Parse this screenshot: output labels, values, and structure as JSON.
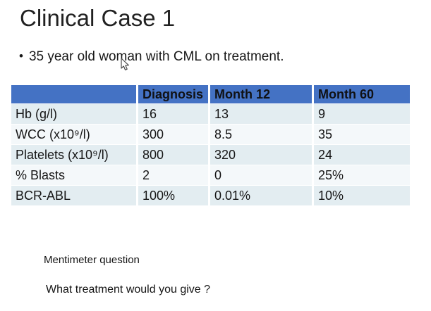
{
  "slide": {
    "title": "Clinical Case 1",
    "bullet_marker": "•",
    "bullet": "35 year old woman with CML on treatment.",
    "footer": {
      "line1": "Mentimeter question",
      "line2": "What treatment would you give ?"
    }
  },
  "table": {
    "header": [
      "",
      "Diagnosis",
      "Month 12",
      "Month 60"
    ],
    "rows": [
      {
        "label": "Hb (g/l)",
        "values": [
          "16",
          "13",
          "9"
        ]
      },
      {
        "label": "WCC (x10⁹/l)",
        "values": [
          "300",
          "8.5",
          "35"
        ]
      },
      {
        "label": "Platelets (x10⁹/l)",
        "values": [
          "800",
          "320",
          "24"
        ]
      },
      {
        "label": "% Blasts",
        "values": [
          "2",
          "0",
          "25%"
        ]
      },
      {
        "label": "BCR-ABL",
        "values": [
          "100%",
          "0.01%",
          "10%"
        ]
      }
    ]
  },
  "colors": {
    "header_bg": "#4472C4",
    "header_text": "#101114",
    "row_odd": "#E3EDF1",
    "row_even": "#F4F8FA"
  },
  "cursor": {
    "icon": "mouse-pointer"
  }
}
